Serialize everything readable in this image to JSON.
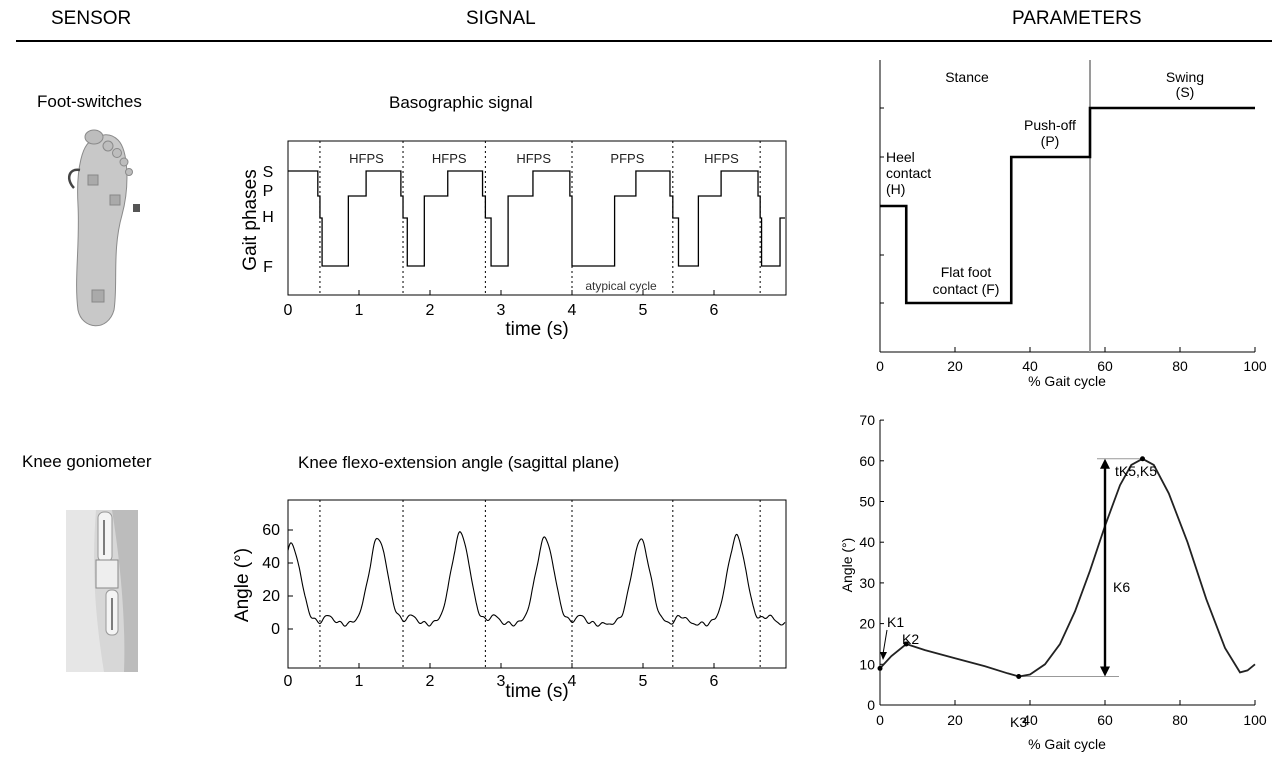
{
  "headers": {
    "sensor": "SENSOR",
    "signal": "SIGNAL",
    "parameters": "PARAMETERS"
  },
  "row1": {
    "sensor_label": "Foot-switches",
    "signal_title": "Basographic signal",
    "chart_ylabel": "Gait phases",
    "chart_xlabel": "time (s)",
    "y_ticks": [
      "S",
      "P",
      "H",
      "F"
    ],
    "x_ticks": [
      "0",
      "1",
      "2",
      "3",
      "4",
      "5",
      "6"
    ],
    "cycle_labels": [
      "HFPS",
      "HFPS",
      "HFPS",
      "PFPS",
      "HFPS"
    ],
    "atypical_label": "atypical cycle",
    "param_xlabel": "% Gait cycle",
    "param_x_ticks": [
      "0",
      "20",
      "40",
      "60",
      "80",
      "100"
    ],
    "stance_label": "Stance",
    "swing_label": "Swing",
    "swing_code": "(S)",
    "heel_label_1": "Heel",
    "heel_label_2": "contact",
    "heel_code": "(H)",
    "flat_label_1": "Flat foot",
    "flat_label_2": "contact (F)",
    "push_label": "Push-off",
    "push_code": "(P)"
  },
  "row2": {
    "sensor_label": "Knee goniometer",
    "signal_title": "Knee flexo-extension angle (sagittal plane)",
    "chart_ylabel": "Angle (°)",
    "chart_xlabel": "time (s)",
    "y_ticks": [
      "0",
      "20",
      "40",
      "60"
    ],
    "x_ticks": [
      "0",
      "1",
      "2",
      "3",
      "4",
      "5",
      "6"
    ],
    "param_ylabel": "Angle (°)",
    "param_xlabel": "% Gait cycle",
    "param_y_ticks": [
      "0",
      "10",
      "20",
      "30",
      "40",
      "50",
      "60",
      "70"
    ],
    "param_x_ticks": [
      "0",
      "20",
      "40",
      "60",
      "80",
      "100"
    ],
    "k1": "K1",
    "k2": "K2",
    "k3": "K3",
    "k5": "tK5,K5",
    "k6": "K6"
  },
  "chart_data": [
    {
      "type": "line",
      "title": "Basographic signal",
      "xlabel": "time (s)",
      "ylabel": "Gait phases",
      "xlim": [
        0,
        7
      ],
      "y_levels": [
        "F",
        "H",
        "P",
        "S"
      ],
      "cycle_boundaries_s": [
        0.45,
        1.62,
        2.78,
        4.0,
        5.42,
        6.65
      ],
      "cycles": [
        "HFPS",
        "HFPS",
        "HFPS",
        "PFPS",
        "HFPS"
      ]
    },
    {
      "type": "line",
      "title": "Knee flexo-extension angle (sagittal plane)",
      "xlabel": "time (s)",
      "ylabel": "Angle (°)",
      "xlim": [
        0,
        7
      ],
      "ylim": [
        -20,
        75
      ],
      "cycle_boundaries_s": [
        0.45,
        1.62,
        2.78,
        4.0,
        5.42,
        6.65
      ],
      "peaks": [
        {
          "x": 0.05,
          "y": 53
        },
        {
          "x": 1.27,
          "y": 57
        },
        {
          "x": 2.43,
          "y": 60
        },
        {
          "x": 3.62,
          "y": 57
        },
        {
          "x": 4.97,
          "y": 56
        },
        {
          "x": 6.32,
          "y": 58
        }
      ]
    },
    {
      "type": "line",
      "xlabel": "% Gait cycle",
      "xlim": [
        0,
        100
      ],
      "steps": [
        {
          "phase": "H",
          "x": [
            0,
            7
          ]
        },
        {
          "phase": "F",
          "x": [
            7,
            35
          ]
        },
        {
          "phase": "P",
          "x": [
            35,
            56
          ]
        },
        {
          "phase": "S",
          "x": [
            56,
            100
          ]
        }
      ],
      "stance_swing_boundary": 56
    },
    {
      "type": "line",
      "xlabel": "% Gait cycle",
      "ylabel": "Angle (°)",
      "xlim": [
        0,
        100
      ],
      "ylim": [
        0,
        70
      ],
      "points": [
        [
          0,
          9
        ],
        [
          3,
          12
        ],
        [
          7,
          15
        ],
        [
          12,
          13.5
        ],
        [
          20,
          11.5
        ],
        [
          28,
          9.5
        ],
        [
          34,
          7.8
        ],
        [
          37,
          7
        ],
        [
          40,
          7.5
        ],
        [
          44,
          10
        ],
        [
          48,
          15
        ],
        [
          52,
          23
        ],
        [
          56,
          33
        ],
        [
          60,
          44
        ],
        [
          64,
          54
        ],
        [
          67,
          59
        ],
        [
          70,
          60.5
        ],
        [
          73,
          59
        ],
        [
          77,
          52
        ],
        [
          82,
          40
        ],
        [
          87,
          26
        ],
        [
          92,
          14
        ],
        [
          96,
          8
        ],
        [
          98,
          8.5
        ],
        [
          100,
          10
        ]
      ],
      "annotations": [
        {
          "label": "K1",
          "x": 0,
          "y": 9
        },
        {
          "label": "K2",
          "x": 7,
          "y": 15
        },
        {
          "label": "K3",
          "x": 37,
          "y": 7
        },
        {
          "label": "tK5,K5",
          "x": 70,
          "y": 60.5
        },
        {
          "label": "K6",
          "x_from": 60,
          "y_from": 7,
          "y_to": 60.5
        }
      ]
    }
  ]
}
